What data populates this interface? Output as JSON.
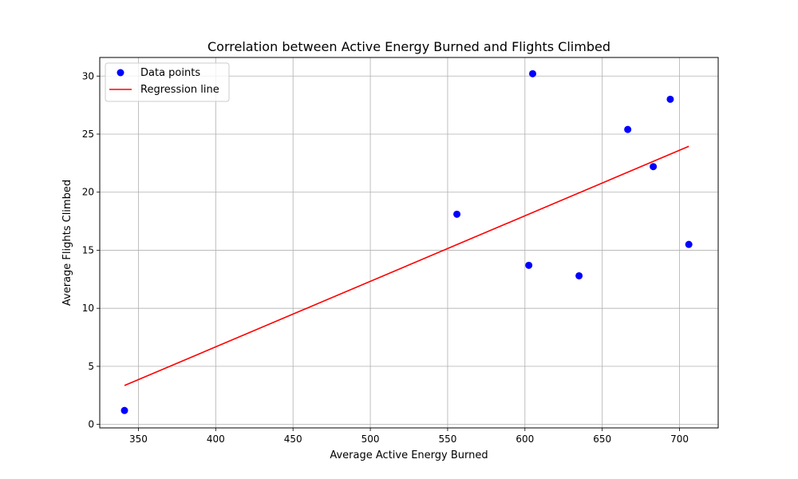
{
  "chart_data": {
    "type": "scatter",
    "title": "Correlation between Active Energy Burned and Flights Climbed",
    "xlabel": "Average Active Energy Burned",
    "ylabel": "Average Flights Climbed",
    "xlim": [
      325,
      725
    ],
    "ylim": [
      -0.3,
      31.6
    ],
    "xticks": [
      350,
      400,
      450,
      500,
      550,
      600,
      650,
      700
    ],
    "yticks": [
      0,
      5,
      10,
      15,
      20,
      25,
      30
    ],
    "grid": true,
    "legend_position": "top-left",
    "series": [
      {
        "name": "Data points",
        "kind": "scatter",
        "color": "#0000ff",
        "points": [
          {
            "x": 341,
            "y": 1.2
          },
          {
            "x": 556,
            "y": 18.1
          },
          {
            "x": 602.5,
            "y": 13.7
          },
          {
            "x": 605,
            "y": 30.2
          },
          {
            "x": 635,
            "y": 12.8
          },
          {
            "x": 666.5,
            "y": 25.4
          },
          {
            "x": 683,
            "y": 22.2
          },
          {
            "x": 694,
            "y": 28.0
          },
          {
            "x": 706,
            "y": 15.5
          }
        ]
      },
      {
        "name": "Regression line",
        "kind": "line",
        "color": "#ff0000",
        "points": [
          {
            "x": 341,
            "y": 3.35
          },
          {
            "x": 706,
            "y": 23.95
          }
        ]
      }
    ]
  }
}
